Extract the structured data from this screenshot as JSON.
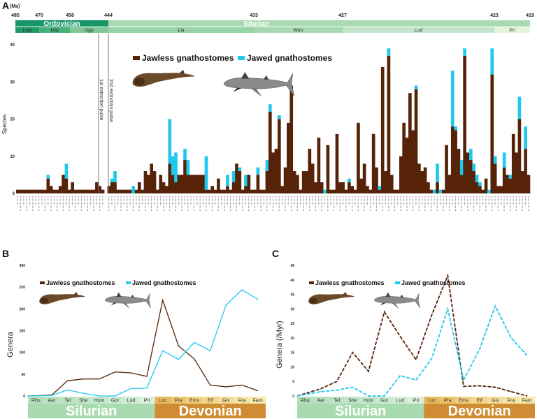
{
  "colors": {
    "jawless": "#562308",
    "jawed": "#1ec8ef",
    "ordovician": "#17966a",
    "silurian": "#a8dcb0",
    "devonian": "#cf8c32"
  },
  "chart_data": [
    {
      "panel": "A",
      "type": "bar",
      "stacked": true,
      "ylabel": "Species",
      "ylim": [
        0,
        40
      ],
      "yticks": [
        "0",
        "10",
        "20",
        "30",
        "40"
      ],
      "legend": {
        "placement": "top-center",
        "items": [
          "Jawless gnathostomes",
          "Jawed gnathostomes"
        ]
      },
      "timescale": {
        "unit": "(Ma)",
        "ticks": [
          "485",
          "470",
          "458",
          "444",
          "433",
          "427",
          "423",
          "419"
        ],
        "periods": [
          {
            "name": "Ordovician",
            "start": 485,
            "end": 444
          },
          {
            "name": "Silurian",
            "start": 444,
            "end": 419
          }
        ],
        "epochs": [
          {
            "name": "Low",
            "start": 485,
            "end": 470
          },
          {
            "name": "Mid",
            "start": 470,
            "end": 458
          },
          {
            "name": "Upp",
            "start": 458,
            "end": 444
          },
          {
            "name": "Lla",
            "start": 444,
            "end": 433
          },
          {
            "name": "Wen",
            "start": 433,
            "end": 427
          },
          {
            "name": "Lud",
            "start": 427,
            "end": 423
          },
          {
            "name": "Pri",
            "start": 423,
            "end": 419
          }
        ]
      },
      "annotations": [
        "1st extinction pulse",
        "2nd extinction pulse"
      ],
      "extinction_after_bar": 29,
      "series": [
        {
          "name": "Jawless gnathostomes",
          "values": [
            1,
            1,
            1,
            1,
            1,
            1,
            1,
            1,
            1,
            1,
            4,
            2,
            1,
            1,
            2,
            5,
            4,
            1,
            3,
            1,
            1,
            1,
            1,
            1,
            1,
            1,
            3,
            2,
            1,
            2,
            3,
            3,
            1,
            1,
            1,
            1,
            1,
            0,
            1,
            3,
            1,
            6,
            5,
            8,
            6,
            1,
            5,
            3,
            2,
            8,
            5,
            3,
            5,
            5,
            9,
            5,
            5,
            5,
            5,
            5,
            5,
            1,
            1,
            2,
            1,
            4,
            1,
            1,
            2,
            1,
            3,
            8,
            6,
            1,
            2,
            5,
            1,
            1,
            5,
            1,
            1,
            6,
            22,
            11,
            12,
            20,
            2,
            7,
            19,
            29,
            6,
            5,
            1,
            6,
            6,
            12,
            8,
            3,
            15,
            3,
            0,
            13,
            1,
            1,
            16,
            3,
            3,
            1,
            3,
            2,
            1,
            19,
            4,
            8,
            2,
            1,
            16,
            7,
            1,
            34,
            6,
            37,
            5,
            1,
            1,
            10,
            19,
            15,
            27,
            17,
            28,
            8,
            6,
            7,
            3,
            1,
            0,
            3,
            0,
            1,
            13,
            5,
            18,
            17,
            12,
            5,
            37,
            11,
            9,
            6,
            3,
            2,
            1,
            4,
            0,
            32,
            8,
            2,
            2,
            7,
            5,
            4,
            16,
            11,
            20,
            6,
            12,
            5
          ]
        },
        {
          "name": "Jawed gnathostomes",
          "values": [
            0,
            0,
            0,
            0,
            0,
            0,
            0,
            0,
            0,
            0,
            1,
            0,
            0,
            0,
            0,
            0,
            4,
            0,
            0,
            0,
            0,
            0,
            0,
            0,
            0,
            0,
            0,
            0,
            0,
            0,
            1,
            3,
            0,
            0,
            0,
            0,
            0,
            2,
            0,
            0,
            0,
            0,
            0,
            0,
            0,
            0,
            0,
            0,
            0,
            12,
            5,
            8,
            0,
            0,
            3,
            4,
            0,
            0,
            0,
            0,
            0,
            9,
            0,
            0,
            0,
            0,
            0,
            0,
            3,
            0,
            3,
            0,
            1,
            0,
            3,
            0,
            0,
            0,
            2,
            0,
            0,
            3,
            2,
            0,
            0,
            1,
            0,
            0,
            0,
            0,
            0,
            0,
            0,
            0,
            0,
            0,
            0,
            0,
            0,
            0,
            1,
            0,
            0,
            0,
            0,
            0,
            0,
            0,
            1,
            0,
            0,
            0,
            0,
            0,
            0,
            0,
            0,
            0,
            1,
            0,
            0,
            2,
            0,
            0,
            0,
            0,
            0,
            0,
            0,
            0,
            1,
            0,
            0,
            0,
            0,
            0,
            1,
            5,
            1,
            0,
            0,
            0,
            15,
            1,
            0,
            4,
            2,
            0,
            3,
            2,
            2,
            1,
            0,
            0,
            1,
            7,
            2,
            0,
            0,
            4,
            0,
            1,
            0,
            0,
            6,
            0,
            6,
            0
          ]
        }
      ]
    },
    {
      "panel": "B",
      "type": "line",
      "ylabel": "Genera",
      "ylim": [
        0,
        300
      ],
      "yticks": [
        "0",
        "50",
        "100",
        "150",
        "200",
        "250",
        "300"
      ],
      "categories": [
        "Rhu",
        "Aer",
        "Tel",
        "She",
        "Hom",
        "Gor",
        "Lud",
        "Pri",
        "Loc",
        "Pra",
        "Ems",
        "Eif",
        "Giv",
        "Fra",
        "Fam"
      ],
      "periods": [
        {
          "name": "Silurian",
          "stages": 8
        },
        {
          "name": "Devonian",
          "stages": 7
        }
      ],
      "legend": {
        "placement": "top-left",
        "items": [
          "Jawless gnathostomes",
          "Jawed gnathostomes"
        ]
      },
      "series": [
        {
          "name": "Jawless gnathostomes",
          "style": "solid",
          "values": [
            0,
            2,
            35,
            39,
            39,
            55,
            53,
            45,
            220,
            115,
            85,
            25,
            21,
            25,
            12
          ]
        },
        {
          "name": "Jawed gnathostomes",
          "style": "solid",
          "values": [
            0,
            1,
            14,
            6,
            0,
            0,
            17,
            18,
            104,
            84,
            123,
            104,
            209,
            244,
            222
          ]
        }
      ]
    },
    {
      "panel": "C",
      "type": "line",
      "ylabel": "Genera (/Myr)",
      "ylim": [
        0,
        45
      ],
      "yticks": [
        "0",
        "5",
        "10",
        "15",
        "20",
        "25",
        "30",
        "35",
        "40",
        "45"
      ],
      "categories": [
        "Rhu",
        "Aer",
        "Tel",
        "She",
        "Hom",
        "Gor",
        "Lud",
        "Pri",
        "Loc",
        "Pra",
        "Ems",
        "Eif",
        "Giv",
        "Fra",
        "Fam"
      ],
      "periods": [
        {
          "name": "Silurian",
          "stages": 8
        },
        {
          "name": "Devonian",
          "stages": 7
        }
      ],
      "legend": {
        "placement": "top-left",
        "items": [
          "Jawless gnathostomes",
          "Jawed gnathostomes"
        ]
      },
      "series": [
        {
          "name": "Jawless gnathostomes",
          "style": "dashed",
          "values": [
            0,
            2.5,
            5,
            15,
            8.5,
            29,
            20.5,
            12.5,
            28,
            41.5,
            3.3,
            3.5,
            3,
            1.5,
            0
          ]
        },
        {
          "name": "Jawed gnathostomes",
          "style": "dashed",
          "values": [
            0,
            1.5,
            2,
            3,
            0,
            0,
            7,
            5.5,
            13,
            30,
            5.5,
            16,
            31,
            20,
            14
          ]
        }
      ]
    }
  ],
  "stage_colors": [
    "#b4e0bb",
    "#b8e2be",
    "#bde4c2",
    "#c2e6c7",
    "#c6e8cb",
    "#cbeacf",
    "#d0ecd4",
    "#dcf1dc",
    "#e9b95e",
    "#edc46c",
    "#f0cf7e",
    "#f2d68c",
    "#f4de98",
    "#f5e4a4",
    "#f6eab0"
  ]
}
